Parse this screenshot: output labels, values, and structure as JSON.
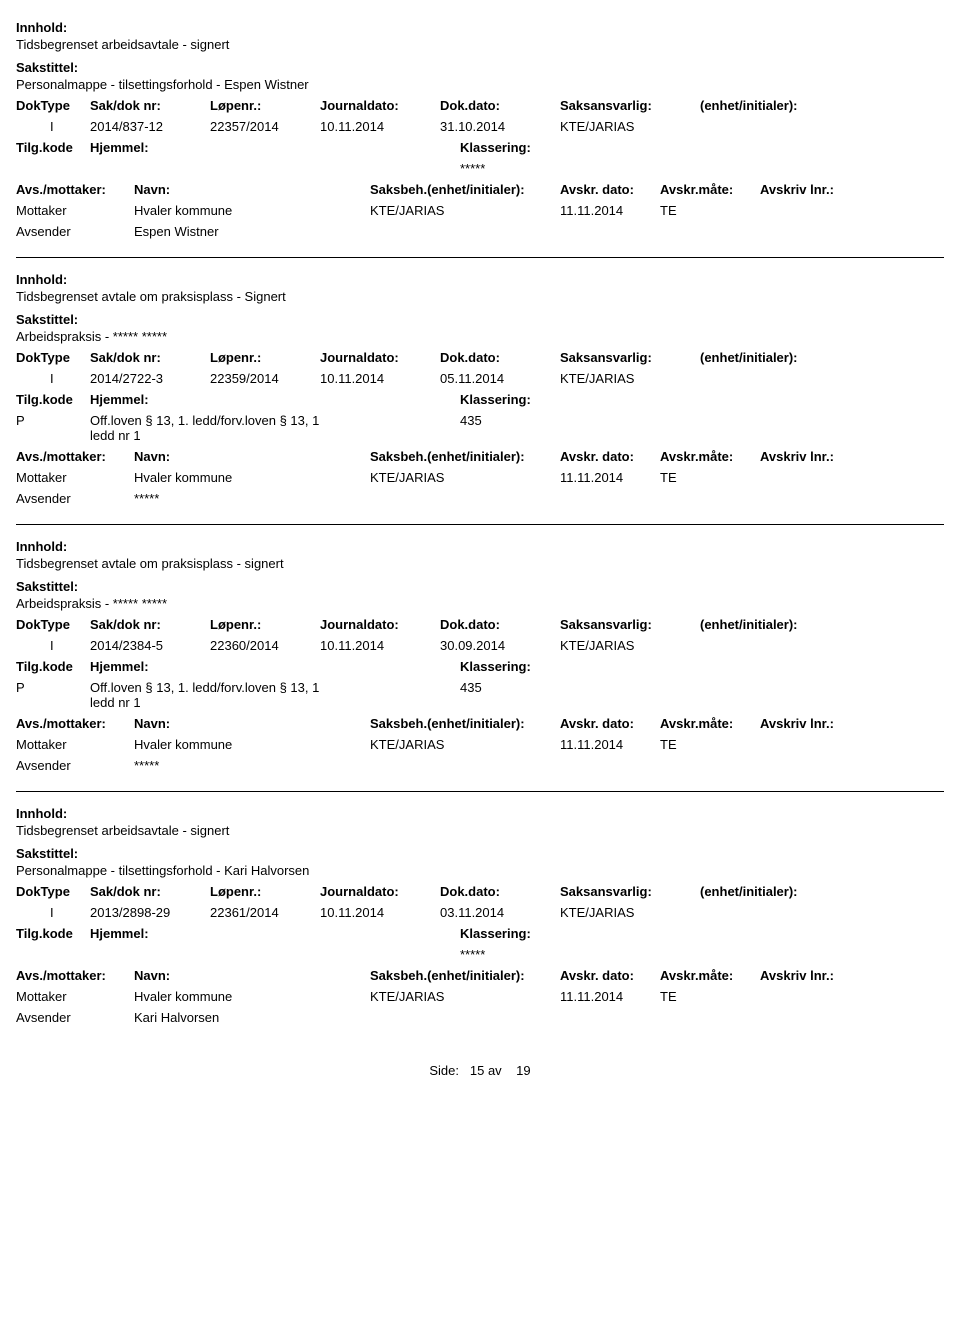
{
  "labels": {
    "innhold": "Innhold:",
    "sakstittel": "Sakstittel:",
    "doktype": "DokType",
    "sakdok": "Sak/dok nr:",
    "lopenr": "Løpenr.:",
    "journaldato": "Journaldato:",
    "dokdato": "Dok.dato:",
    "saksansvarlig": "Saksansvarlig:",
    "enhet": "(enhet/initialer):",
    "tilgkode": "Tilg.kode",
    "hjemmel": "Hjemmel:",
    "klassering": "Klassering:",
    "avsmottaker": "Avs./mottaker:",
    "navn": "Navn:",
    "saksbeh": "Saksbeh.(enhet/initialer):",
    "avskrdato": "Avskr. dato:",
    "avskrmate": "Avskr.måte:",
    "avskrivlnr": "Avskriv lnr.:",
    "mottaker": "Mottaker",
    "avsender": "Avsender"
  },
  "records": [
    {
      "innhold": "Tidsbegrenset arbeidsavtale - signert",
      "sakstittel": "Personalmappe - tilsettingsforhold - Espen Wistner",
      "doktype": "I",
      "sakdok": "2014/837-12",
      "lopenr": "22357/2014",
      "journaldato": "10.11.2014",
      "dokdato": "31.10.2014",
      "saksansvarlig": "KTE/JARIAS",
      "tilgkode": "",
      "hjemmel": "",
      "klassering": "*****",
      "show_avs_hdr": false,
      "mottaker_navn": "Hvaler kommune",
      "mottaker_saksbeh": "KTE/JARIAS",
      "mottaker_avskrdato": "11.11.2014",
      "mottaker_avskrmate": "TE",
      "avsender_navn": "Espen Wistner"
    },
    {
      "innhold": "Tidsbegrenset avtale om praksisplass - Signert",
      "sakstittel": "Arbeidspraksis - ***** *****",
      "doktype": "I",
      "sakdok": "2014/2722-3",
      "lopenr": "22359/2014",
      "journaldato": "10.11.2014",
      "dokdato": "05.11.2014",
      "saksansvarlig": "KTE/JARIAS",
      "tilgkode": "P",
      "hjemmel": "Off.loven § 13, 1. ledd/forv.loven § 13, 1 ledd nr 1",
      "klassering": "435",
      "show_avs_hdr": false,
      "mottaker_navn": "Hvaler kommune",
      "mottaker_saksbeh": "KTE/JARIAS",
      "mottaker_avskrdato": "11.11.2014",
      "mottaker_avskrmate": "TE",
      "avsender_navn": "*****"
    },
    {
      "innhold": "Tidsbegrenset avtale om praksisplass - signert",
      "sakstittel": "Arbeidspraksis - ***** *****",
      "doktype": "I",
      "sakdok": "2014/2384-5",
      "lopenr": "22360/2014",
      "journaldato": "10.11.2014",
      "dokdato": "30.09.2014",
      "saksansvarlig": "KTE/JARIAS",
      "tilgkode": "P",
      "hjemmel": "Off.loven § 13, 1. ledd/forv.loven § 13, 1 ledd nr 1",
      "klassering": "435",
      "show_avs_hdr": true,
      "mottaker_navn": "Hvaler kommune",
      "mottaker_saksbeh": "KTE/JARIAS",
      "mottaker_avskrdato": "11.11.2014",
      "mottaker_avskrmate": "TE",
      "avsender_navn": "*****"
    },
    {
      "innhold": "Tidsbegrenset arbeidsavtale - signert",
      "sakstittel": "Personalmappe - tilsettingsforhold - Kari Halvorsen",
      "doktype": "I",
      "sakdok": "2013/2898-29",
      "lopenr": "22361/2014",
      "journaldato": "10.11.2014",
      "dokdato": "03.11.2014",
      "saksansvarlig": "KTE/JARIAS",
      "tilgkode": "",
      "hjemmel": "",
      "klassering": "*****",
      "show_avs_hdr": true,
      "mottaker_navn": "Hvaler kommune",
      "mottaker_saksbeh": "KTE/JARIAS",
      "mottaker_avskrdato": "11.11.2014",
      "mottaker_avskrmate": "TE",
      "avsender_navn": "Kari Halvorsen"
    }
  ],
  "footer": {
    "side_label": "Side:",
    "page": "15",
    "sep": "av",
    "total": "19"
  }
}
